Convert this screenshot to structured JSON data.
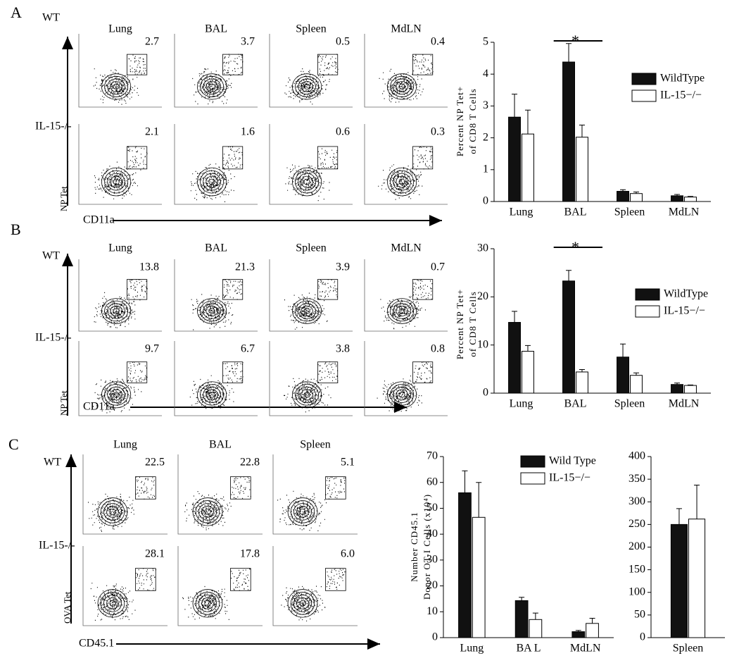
{
  "panels": [
    {
      "letter": "A",
      "row_labels": [
        "WT",
        "IL-15-/-"
      ],
      "y_axis": "NP Tet",
      "x_axis": "CD11a",
      "tissues": [
        "Lung",
        "BAL",
        "Spleen",
        "MdLN"
      ],
      "gates": [
        [
          "2.7",
          "3.7",
          "0.5",
          "0.4"
        ],
        [
          "2.1",
          "1.6",
          "0.6",
          "0.3"
        ]
      ]
    },
    {
      "letter": "B",
      "row_labels": [
        "WT",
        "IL-15-/-"
      ],
      "y_axis": "NP Tet",
      "x_axis": "CD11a",
      "tissues": [
        "Lung",
        "BAL",
        "Spleen",
        "MdLN"
      ],
      "gates": [
        [
          "13.8",
          "21.3",
          "3.9",
          "0.7"
        ],
        [
          "9.7",
          "6.7",
          "3.8",
          "0.8"
        ]
      ]
    },
    {
      "letter": "C",
      "row_labels": [
        "WT",
        "IL-15-/-"
      ],
      "y_axis": "OVA Tet",
      "x_axis": "CD45.1",
      "tissues": [
        "Lung",
        "BAL",
        "Spleen"
      ],
      "gates": [
        [
          "22.5",
          "22.8",
          "5.1"
        ],
        [
          "28.1",
          "17.8",
          "6.0"
        ]
      ]
    }
  ],
  "chart_data": [
    {
      "type": "bar",
      "y_label": [
        "Percent NP Tet+",
        "of CD8 T Cells"
      ],
      "annotation": "*",
      "categories": [
        "Lung",
        "BAL",
        "Spleen",
        "MdLN"
      ],
      "series": [
        {
          "name": "WildType",
          "color": "#111111",
          "values": [
            2.65,
            4.38,
            0.32,
            0.18
          ],
          "errors": [
            0.72,
            0.58,
            0.05,
            0.04
          ]
        },
        {
          "name": "IL-15−/−",
          "color": "#ffffff",
          "values": [
            2.12,
            2.02,
            0.25,
            0.14
          ],
          "errors": [
            0.75,
            0.38,
            0.05,
            0.02
          ]
        }
      ],
      "ylim": [
        0,
        5
      ],
      "yticks": [
        0,
        1,
        2,
        3,
        4,
        5
      ]
    },
    {
      "type": "bar",
      "y_label": [
        "Percent NP Tet+",
        "of CD8 T Cells"
      ],
      "annotation": "*",
      "categories": [
        "Lung",
        "BAL",
        "Spleen",
        "MdLN"
      ],
      "series": [
        {
          "name": "WildType",
          "color": "#111111",
          "values": [
            14.7,
            23.3,
            7.5,
            1.8
          ],
          "errors": [
            2.3,
            2.2,
            2.7,
            0.3
          ]
        },
        {
          "name": "IL-15−/−",
          "color": "#ffffff",
          "values": [
            8.7,
            4.4,
            3.7,
            1.6
          ],
          "errors": [
            1.2,
            0.5,
            0.5,
            0.1
          ]
        }
      ],
      "ylim": [
        0,
        30
      ],
      "yticks": [
        0,
        10,
        20,
        30
      ]
    },
    {
      "type": "bar",
      "y_label": [
        "Number CD45.1",
        "Donor OT-I Cells (x10⁴)"
      ],
      "categories": [
        "Lung",
        "BA L",
        "MdLN"
      ],
      "series": [
        {
          "name": "Wild Type",
          "color": "#111111",
          "values": [
            56,
            14.3,
            2.3
          ],
          "errors": [
            8.5,
            1.3,
            0.5
          ]
        },
        {
          "name": "IL-15−/−",
          "color": "#ffffff",
          "values": [
            46.5,
            7,
            5.5
          ],
          "errors": [
            13.5,
            2.5,
            2
          ]
        }
      ],
      "ylim": [
        0,
        70
      ],
      "yticks": [
        0,
        10,
        20,
        30,
        40,
        50,
        60,
        70
      ]
    },
    {
      "type": "bar",
      "categories": [
        "Spleen"
      ],
      "series": [
        {
          "color": "#111111",
          "values": [
            250
          ],
          "errors": [
            35
          ]
        },
        {
          "color": "#ffffff",
          "values": [
            262
          ],
          "errors": [
            75
          ]
        }
      ],
      "ylim": [
        0,
        400
      ],
      "yticks": [
        0,
        50,
        100,
        150,
        200,
        250,
        300,
        350,
        400
      ]
    }
  ]
}
